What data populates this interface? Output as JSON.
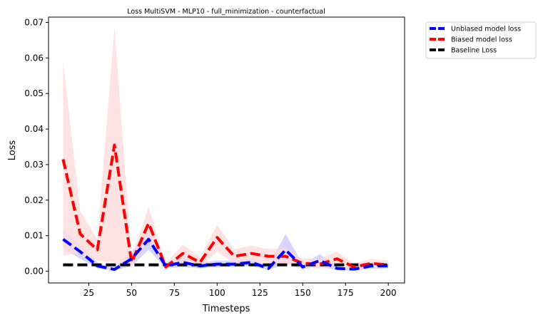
{
  "chart_data": {
    "type": "line",
    "title": "Loss MultiSVM - MLP10 - full_minimization - counterfactual",
    "xlabel": "Timesteps",
    "ylabel": "Loss",
    "xlim": [
      1.5,
      209.5
    ],
    "ylim": [
      -0.0033,
      0.0715
    ],
    "xticks": [
      25,
      50,
      75,
      100,
      125,
      150,
      175,
      200
    ],
    "xtick_labels": [
      "25",
      "50",
      "75",
      "100",
      "125",
      "150",
      "175",
      "200"
    ],
    "yticks": [
      0,
      0.01,
      0.02,
      0.03,
      0.04,
      0.05,
      0.06,
      0.07
    ],
    "ytick_labels": [
      "0.00",
      "0.01",
      "0.02",
      "0.03",
      "0.04",
      "0.05",
      "0.06",
      "0.07"
    ],
    "grid": false,
    "legend_position": "outside-top-right",
    "x": [
      10,
      20,
      30,
      40,
      50,
      60,
      70,
      80,
      90,
      100,
      110,
      120,
      130,
      140,
      150,
      160,
      170,
      180,
      190,
      200
    ],
    "series": [
      {
        "name": "Unbiased model loss",
        "color": "#0000ff",
        "band_color": "#c8c8ff",
        "values": [
          0.009,
          0.0055,
          0.0015,
          0.0005,
          0.0035,
          0.009,
          0.0015,
          0.0025,
          0.0015,
          0.002,
          0.002,
          0.0025,
          0.0008,
          0.006,
          0.0012,
          0.003,
          0.0008,
          0.0006,
          0.0015,
          0.0015
        ],
        "lower": [
          0.0065,
          0.0035,
          0.0008,
          0.0002,
          0.0015,
          0.006,
          0.0008,
          0.0012,
          0.0008,
          0.0012,
          0.0012,
          0.0015,
          0.0003,
          0.0022,
          0.0006,
          0.0012,
          0.0003,
          0.0002,
          0.0007,
          0.0008
        ],
        "upper": [
          0.0115,
          0.0075,
          0.0025,
          0.001,
          0.0055,
          0.0115,
          0.0025,
          0.004,
          0.0025,
          0.003,
          0.003,
          0.0035,
          0.0015,
          0.0105,
          0.002,
          0.0048,
          0.0015,
          0.001,
          0.0025,
          0.0022
        ]
      },
      {
        "name": "Biased model loss",
        "color": "#ff0000",
        "band_color": "#ffd9d9",
        "values": [
          0.0315,
          0.0105,
          0.006,
          0.0355,
          0.0025,
          0.0135,
          0.0012,
          0.005,
          0.0025,
          0.0095,
          0.0042,
          0.005,
          0.0042,
          0.0042,
          0.0022,
          0.002,
          0.0035,
          0.0012,
          0.0022,
          0.0018
        ],
        "lower": [
          0.0045,
          0.005,
          0.003,
          0.0025,
          0.0012,
          0.009,
          0.0006,
          0.0025,
          0.0012,
          0.0055,
          0.0022,
          0.0028,
          0.0022,
          0.002,
          0.001,
          0.0008,
          0.0015,
          0.0005,
          0.001,
          0.0008
        ],
        "upper": [
          0.059,
          0.017,
          0.009,
          0.0685,
          0.004,
          0.018,
          0.0022,
          0.0075,
          0.004,
          0.013,
          0.0062,
          0.0072,
          0.0062,
          0.0065,
          0.0035,
          0.0035,
          0.0055,
          0.0022,
          0.0035,
          0.003
        ]
      },
      {
        "name": "Baseline Loss",
        "color": "#000000",
        "values": [
          0.0018,
          0.0018,
          0.0018,
          0.0018,
          0.0018,
          0.0018,
          0.0018,
          0.0018,
          0.0018,
          0.0018,
          0.0018,
          0.0018,
          0.0018,
          0.0018,
          0.0018,
          0.0018,
          0.0018,
          0.0018,
          0.0018,
          0.0018
        ]
      }
    ]
  }
}
